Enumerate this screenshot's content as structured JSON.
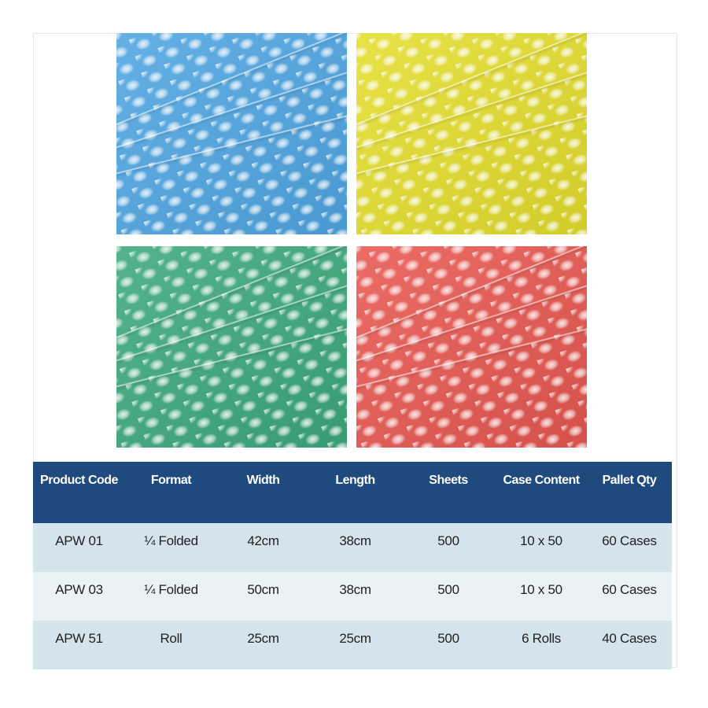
{
  "swatches": [
    {
      "color": "blue",
      "hex": "#4da6e4"
    },
    {
      "color": "yellow",
      "hex": "#e6e02a"
    },
    {
      "color": "green",
      "hex": "#3aa97c"
    },
    {
      "color": "red",
      "hex": "#ea564f"
    }
  ],
  "table": {
    "headers": [
      "Product Code",
      "Format",
      "Width",
      "Length",
      "Sheets",
      "Case Content",
      "Pallet Qty"
    ],
    "rows": [
      [
        "APW 01",
        "¼ Folded",
        "42cm",
        "38cm",
        "500",
        "10 x 50",
        "60 Cases"
      ],
      [
        "APW 03",
        "¼ Folded",
        "50cm",
        "38cm",
        "500",
        "10 x 50",
        "60 Cases"
      ],
      [
        "APW 51",
        "Roll",
        "25cm",
        "25cm",
        "500",
        "6 Rolls",
        "40 Cases"
      ]
    ],
    "header_color": "#1f4a7e"
  }
}
